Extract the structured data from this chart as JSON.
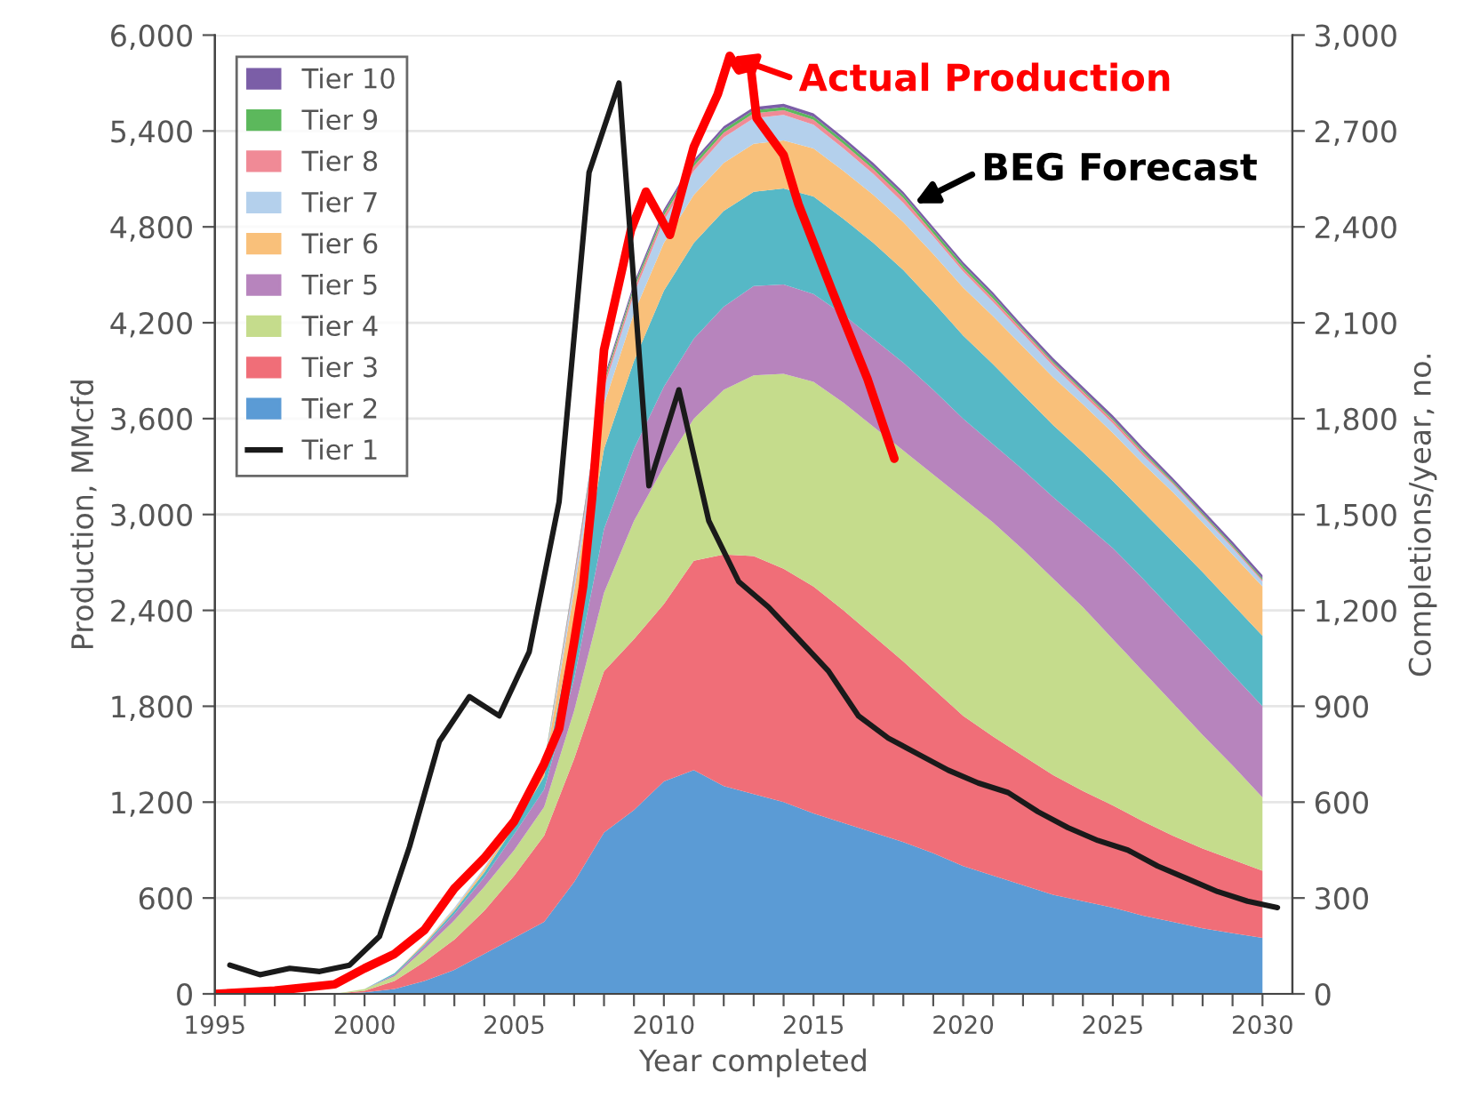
{
  "chart_data": {
    "type": "area",
    "stacked": true,
    "xlabel": "Year completed",
    "ylabel": "Production, MMcfd",
    "y2label": "Completions/year, no.",
    "x": [
      1995,
      1996,
      1997,
      1998,
      1999,
      2000,
      2001,
      2002,
      2003,
      2004,
      2005,
      2006,
      2007,
      2008,
      2009,
      2010,
      2011,
      2012,
      2013,
      2014,
      2015,
      2016,
      2017,
      2018,
      2019,
      2020,
      2021,
      2022,
      2023,
      2024,
      2025,
      2026,
      2027,
      2028,
      2029,
      2030
    ],
    "xlim": [
      1995,
      2031
    ],
    "xticks": [
      {
        "value": 1995,
        "label": "1995"
      },
      {
        "value": 1996,
        "label": null
      },
      {
        "value": 1997,
        "label": null
      },
      {
        "value": 1998,
        "label": null
      },
      {
        "value": 1999,
        "label": null
      },
      {
        "value": 2000,
        "label": "2000"
      },
      {
        "value": 2001,
        "label": null
      },
      {
        "value": 2002,
        "label": null
      },
      {
        "value": 2003,
        "label": null
      },
      {
        "value": 2004,
        "label": null
      },
      {
        "value": 2005,
        "label": "2005"
      },
      {
        "value": 2006,
        "label": null
      },
      {
        "value": 2007,
        "label": null
      },
      {
        "value": 2008,
        "label": null
      },
      {
        "value": 2009,
        "label": null
      },
      {
        "value": 2010,
        "label": "2010"
      },
      {
        "value": 2011,
        "label": null
      },
      {
        "value": 2012,
        "label": null
      },
      {
        "value": 2013,
        "label": null
      },
      {
        "value": 2014,
        "label": null
      },
      {
        "value": 2015,
        "label": "2015"
      },
      {
        "value": 2016,
        "label": null
      },
      {
        "value": 2017,
        "label": null
      },
      {
        "value": 2018,
        "label": null
      },
      {
        "value": 2019,
        "label": null
      },
      {
        "value": 2020,
        "label": "2020"
      },
      {
        "value": 2021,
        "label": null
      },
      {
        "value": 2022,
        "label": null
      },
      {
        "value": 2023,
        "label": null
      },
      {
        "value": 2024,
        "label": null
      },
      {
        "value": 2025,
        "label": "2025"
      },
      {
        "value": 2026,
        "label": null
      },
      {
        "value": 2027,
        "label": null
      },
      {
        "value": 2028,
        "label": null
      },
      {
        "value": 2029,
        "label": null
      },
      {
        "value": 2030,
        "label": "2030"
      }
    ],
    "ylim": [
      0,
      6000
    ],
    "yticks": [
      0,
      600,
      {
        "value": 1200,
        "label": "1,200"
      },
      {
        "value": 1800,
        "label": "1,800"
      },
      {
        "value": 2400,
        "label": "2,400"
      },
      {
        "value": 3000,
        "label": "3,000"
      },
      {
        "value": 3600,
        "label": "3,600"
      },
      {
        "value": 4200,
        "label": "4,200"
      },
      {
        "value": 4800,
        "label": "4,800"
      },
      {
        "value": 5400,
        "label": "5,400"
      },
      {
        "value": 6000,
        "label": "6,000"
      }
    ],
    "y2lim": [
      0,
      3000
    ],
    "y2ticks": [
      0,
      300,
      600,
      900,
      {
        "value": 1200,
        "label": "1,200"
      },
      {
        "value": 1500,
        "label": "1,500"
      },
      {
        "value": 1800,
        "label": "1,800"
      },
      {
        "value": 2100,
        "label": "2,100"
      },
      {
        "value": 2400,
        "label": "2,400"
      },
      {
        "value": 2700,
        "label": "2,700"
      },
      {
        "value": 3000,
        "label": "3,000"
      }
    ],
    "grid": "y",
    "legend": "top left",
    "series": [
      {
        "name": "Tier 2",
        "color": "#5b9bd5",
        "values": [
          0,
          0,
          0,
          0,
          0,
          10,
          30,
          80,
          150,
          250,
          350,
          450,
          700,
          1010,
          1150,
          1330,
          1400,
          1300,
          1250,
          1200,
          1130,
          1070,
          1010,
          950,
          880,
          800,
          740,
          680,
          620,
          580,
          540,
          490,
          450,
          410,
          380,
          350
        ]
      },
      {
        "name": "Tier 3",
        "color": "#f06e78",
        "values": [
          0,
          0,
          0,
          0,
          0,
          10,
          50,
          120,
          190,
          270,
          390,
          540,
          770,
          1010,
          1070,
          1110,
          1310,
          1450,
          1490,
          1460,
          1420,
          1330,
          1230,
          1130,
          1030,
          940,
          870,
          810,
          750,
          690,
          640,
          590,
          540,
          500,
          460,
          420
        ]
      },
      {
        "name": "Tier 4",
        "color": "#c5dc8c",
        "values": [
          0,
          0,
          0,
          0,
          0,
          10,
          30,
          80,
          120,
          150,
          160,
          180,
          300,
          490,
          740,
          860,
          890,
          1030,
          1130,
          1220,
          1280,
          1300,
          1310,
          1320,
          1340,
          1360,
          1340,
          1290,
          1230,
          1150,
          1040,
          940,
          830,
          710,
          590,
          460
        ]
      },
      {
        "name": "Tier 5",
        "color": "#b784bd",
        "values": [
          0,
          0,
          0,
          0,
          0,
          0,
          10,
          20,
          40,
          60,
          100,
          110,
          200,
          400,
          450,
          500,
          500,
          520,
          560,
          560,
          550,
          550,
          550,
          550,
          530,
          500,
          490,
          500,
          510,
          530,
          570,
          580,
          580,
          580,
          570,
          570
        ]
      },
      {
        "color": "#56b8c6",
        "values": [
          0,
          0,
          0,
          0,
          0,
          0,
          10,
          10,
          20,
          30,
          50,
          80,
          350,
          500,
          550,
          600,
          600,
          600,
          590,
          600,
          610,
          600,
          600,
          580,
          550,
          520,
          500,
          470,
          450,
          440,
          420,
          420,
          430,
          440,
          440,
          440
        ]
      },
      {
        "name": "Tier 6",
        "color": "#f9c07a",
        "values": [
          0,
          0,
          0,
          0,
          0,
          0,
          0,
          10,
          10,
          20,
          20,
          40,
          200,
          280,
          300,
          300,
          300,
          300,
          300,
          300,
          300,
          300,
          300,
          300,
          300,
          300,
          300,
          300,
          300,
          300,
          300,
          300,
          310,
          310,
          310,
          310
        ]
      },
      {
        "name": "Tier 7",
        "color": "#b4d0ec",
        "values": [
          0,
          0,
          0,
          0,
          0,
          0,
          0,
          0,
          10,
          10,
          10,
          20,
          60,
          100,
          120,
          140,
          150,
          160,
          160,
          160,
          150,
          140,
          130,
          120,
          110,
          100,
          90,
          80,
          70,
          60,
          60,
          50,
          50,
          40,
          40,
          30
        ]
      },
      {
        "name": "Tier 8",
        "color": "#f08a96",
        "values": [
          0,
          0,
          0,
          0,
          0,
          0,
          0,
          0,
          0,
          0,
          10,
          10,
          20,
          30,
          30,
          30,
          30,
          30,
          30,
          30,
          30,
          30,
          30,
          30,
          20,
          20,
          20,
          20,
          20,
          20,
          20,
          20,
          10,
          10,
          10,
          10
        ]
      },
      {
        "name": "Tier 9",
        "color": "#5cb85c",
        "values": [
          0,
          0,
          0,
          0,
          0,
          0,
          0,
          0,
          0,
          0,
          0,
          10,
          10,
          20,
          20,
          20,
          20,
          20,
          20,
          20,
          20,
          20,
          20,
          20,
          20,
          20,
          20,
          10,
          10,
          10,
          10,
          10,
          10,
          10,
          10,
          10
        ]
      },
      {
        "name": "Tier 10",
        "color": "#7b5ea7",
        "values": [
          0,
          0,
          0,
          0,
          0,
          0,
          0,
          0,
          0,
          0,
          0,
          0,
          10,
          20,
          20,
          20,
          20,
          20,
          20,
          20,
          20,
          20,
          20,
          20,
          20,
          20,
          20,
          20,
          20,
          20,
          20,
          20,
          20,
          20,
          20,
          20
        ]
      },
      {
        "name": "Tier 1",
        "type": "line",
        "axis": "y2",
        "color": "#1a1a1a",
        "x": [
          1995.5,
          1996.5,
          1997.5,
          1998.5,
          1999.5,
          2000.5,
          2001.5,
          2002.5,
          2003.5,
          2004.5,
          2005.5,
          2006.5,
          2007.5,
          2008.5,
          2009.5,
          2010.5,
          2011.5,
          2012.5,
          2013.5,
          2014.5,
          2015.5,
          2016.5,
          2017.5,
          2018.5,
          2019.5,
          2020.5,
          2021.5,
          2022.5,
          2023.5,
          2024.5,
          2025.5,
          2026.5,
          2027.5,
          2028.5,
          2029.5,
          2030.5
        ],
        "values": [
          90,
          60,
          80,
          70,
          90,
          180,
          460,
          790,
          930,
          870,
          1070,
          1540,
          2570,
          2850,
          1590,
          1890,
          1480,
          1290,
          1210,
          1110,
          1010,
          870,
          800,
          750,
          700,
          660,
          630,
          570,
          520,
          480,
          450,
          400,
          360,
          320,
          290,
          270
        ]
      },
      {
        "name": "Actual Production",
        "type": "line",
        "color": "#ff0000",
        "x": [
          1995,
          1997,
          1999,
          2000,
          2001,
          2002,
          2003,
          2004,
          2005,
          2006,
          2006.5,
          2007,
          2007.3,
          2007.6,
          2008,
          2008.9,
          2009.4,
          2010.2,
          2011,
          2011.8,
          2012.2,
          2012.5,
          2012.9,
          2013.1,
          2014,
          2014.4,
          2014.5,
          2015.6,
          2016.8,
          2017.7
        ],
        "values": [
          0,
          20,
          60,
          160,
          250,
          400,
          660,
          850,
          1080,
          1440,
          1660,
          2200,
          2550,
          3100,
          4030,
          4780,
          5020,
          4750,
          5300,
          5630,
          5870,
          5780,
          5800,
          5480,
          5250,
          5000,
          4940,
          4410,
          3850,
          3350
        ]
      }
    ],
    "annotations": [
      {
        "text": "BEG Forecast",
        "x": 2018.3,
        "y": 4940
      }
    ]
  }
}
